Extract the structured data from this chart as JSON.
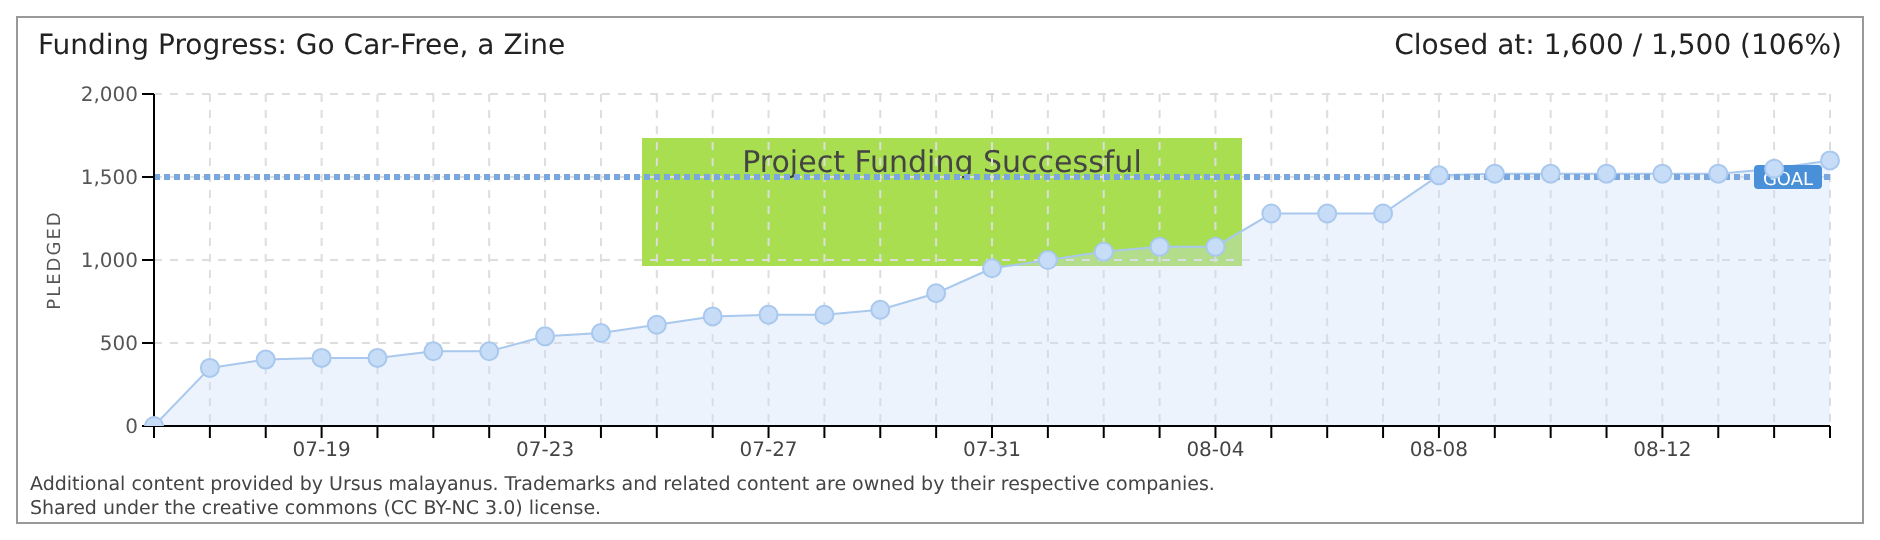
{
  "chart_data": {
    "type": "area",
    "title": "Funding Progress: Go Car-Free, a Zine",
    "subtitle": "Closed at: 1,600 / 1,500 (106%)",
    "ylabel": "PLEDGED",
    "categories": [
      null,
      null,
      null,
      "07-19",
      null,
      null,
      null,
      "07-23",
      null,
      null,
      null,
      "07-27",
      null,
      null,
      null,
      "07-31",
      null,
      null,
      null,
      "08-04",
      null,
      null,
      null,
      "08-08",
      null,
      null,
      null,
      "08-12",
      null,
      null,
      null
    ],
    "series": [
      {
        "color": "#a9c8ee",
        "values": [
          0,
          350,
          400,
          410,
          410,
          450,
          450,
          540,
          560,
          610,
          660,
          670,
          670,
          700,
          800,
          950,
          1000,
          1050,
          1080,
          1080,
          1280,
          1280,
          1280,
          1510,
          1520,
          1520,
          1520,
          1520,
          1520,
          1550,
          1600
        ]
      }
    ],
    "ylim": [
      0,
      2000
    ],
    "yticks": [
      {
        "value": 0,
        "label": "0"
      },
      {
        "value": 500,
        "label": "500"
      },
      {
        "value": 1000,
        "label": "1,000"
      },
      {
        "value": 1500,
        "label": "1,500"
      },
      {
        "value": 2000,
        "label": "2,000"
      }
    ],
    "ref_lines": [
      {
        "axis": "y",
        "value": 1500,
        "label": "GOAL",
        "color": "#7aa7dd",
        "line_style": "dotted"
      }
    ],
    "annotations": [
      "Project Funding Successful",
      "Additional content provided by Ursus malayanus. Trademarks and related content are owned by their respective companies.",
      "Shared under the creative commons (CC BY-NC 3.0) license."
    ],
    "grid": true,
    "legend": false,
    "marker": "circle",
    "line_style": "solid"
  }
}
